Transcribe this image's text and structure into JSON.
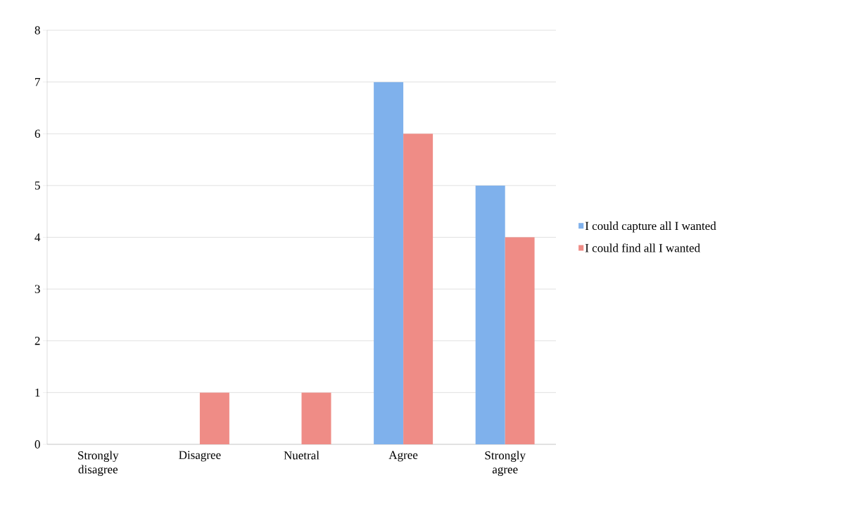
{
  "chart_data": {
    "type": "bar",
    "categories": [
      "Strongly disagree",
      "Disagree",
      "Nuetral",
      "Agree",
      "Strongly agree"
    ],
    "series": [
      {
        "name": "I could capture all I wanted",
        "color": "#7fb1ec",
        "values": [
          0,
          0,
          0,
          7,
          5
        ]
      },
      {
        "name": "I could find all I wanted",
        "color": "#ef8c86",
        "values": [
          0,
          1,
          1,
          6,
          4
        ]
      }
    ],
    "ylim": [
      0,
      8
    ],
    "yticks": [
      0,
      1,
      2,
      3,
      4,
      5,
      6,
      7,
      8
    ],
    "grid": "y",
    "legend": "right"
  }
}
